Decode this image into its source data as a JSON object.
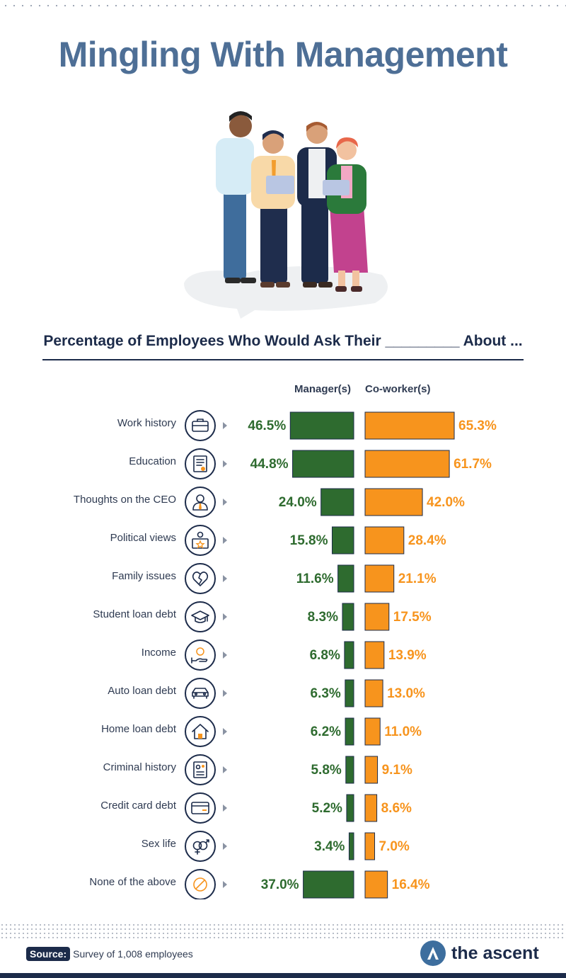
{
  "title": "Mingling With Management",
  "subtitle": "Percentage of Employees Who Would Ask Their _________ About ...",
  "source_tag": "Source:",
  "source_text": "Survey of 1,008 employees",
  "brand": "the ascent",
  "colors": {
    "manager": "#2e6b2f",
    "coworker": "#f7941d",
    "navy": "#1c2b4a",
    "title": "#4e6f96"
  },
  "chart_data": {
    "type": "bar",
    "orientation": "horizontal-diverging",
    "categories": [
      "Work history",
      "Education",
      "Thoughts on the CEO",
      "Political views",
      "Family issues",
      "Student loan debt",
      "Income",
      "Auto loan debt",
      "Home loan debt",
      "Criminal history",
      "Credit card debt",
      "Sex life",
      "None of the above"
    ],
    "icons": [
      "briefcase-icon",
      "diploma-icon",
      "ceo-icon",
      "voting-icon",
      "broken-heart-icon",
      "graduation-cap-icon",
      "income-hand-icon",
      "car-icon",
      "house-icon",
      "record-document-icon",
      "credit-card-icon",
      "gender-symbols-icon",
      "prohibited-icon"
    ],
    "series": [
      {
        "name": "Manager(s)",
        "values": [
          46.5,
          44.8,
          24.0,
          15.8,
          11.6,
          8.3,
          6.8,
          6.3,
          6.2,
          5.8,
          5.2,
          3.4,
          37.0
        ],
        "labels": [
          "46.5%",
          "44.8%",
          "24.0%",
          "15.8%",
          "11.6%",
          "8.3%",
          "6.8%",
          "6.3%",
          "6.2%",
          "5.8%",
          "5.2%",
          "3.4%",
          "37.0%"
        ]
      },
      {
        "name": "Co-worker(s)",
        "values": [
          65.3,
          61.7,
          42.0,
          28.4,
          21.1,
          17.5,
          13.9,
          13.0,
          11.0,
          9.1,
          8.6,
          7.0,
          16.4
        ],
        "labels": [
          "65.3%",
          "61.7%",
          "42.0%",
          "28.4%",
          "21.1%",
          "17.5%",
          "13.9%",
          "13.0%",
          "11.0%",
          "9.1%",
          "8.6%",
          "7.0%",
          "16.4%"
        ]
      }
    ],
    "unit": "%"
  }
}
